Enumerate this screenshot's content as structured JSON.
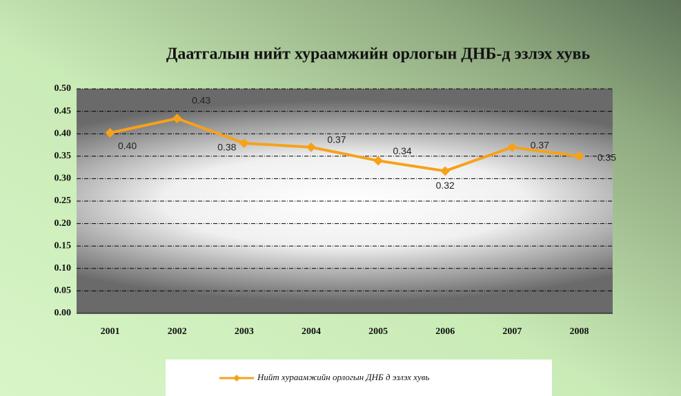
{
  "chart_data": {
    "type": "line",
    "title": "Даатгалын нийт хураамжийн орлогын ДНБ-д эзлэх хувь",
    "categories": [
      "2001",
      "2002",
      "2003",
      "2004",
      "2005",
      "2006",
      "2007",
      "2008"
    ],
    "series": [
      {
        "name": "Нийт хураамжийн орлогын ДНБ д эзлэх хувь",
        "color": "#f7a11a",
        "values": [
          0.402,
          0.434,
          0.379,
          0.37,
          0.34,
          0.317,
          0.37,
          0.35
        ],
        "value_labels": [
          "0.40",
          "0.43",
          "0.38",
          "0.37",
          "0.34",
          "0.32",
          "0.37",
          "0.35"
        ]
      }
    ],
    "ylim": [
      0,
      0.5
    ],
    "yticks": [
      {
        "value": 0,
        "label": "0.00"
      },
      {
        "value": 0.05,
        "label": "0.05"
      },
      {
        "value": 0.1,
        "label": "0.10"
      },
      {
        "value": 0.15,
        "label": "0.15"
      },
      {
        "value": 0.2,
        "label": "0.20"
      },
      {
        "value": 0.25,
        "label": "0.25"
      },
      {
        "value": 0.3,
        "label": "0.30"
      },
      {
        "value": 0.35,
        "label": "0.35"
      },
      {
        "value": 0.4,
        "label": "0.40"
      },
      {
        "value": 0.45,
        "label": "0.45"
      },
      {
        "value": 0.5,
        "label": "0.50"
      }
    ],
    "grid": true,
    "legend": "bottom"
  }
}
